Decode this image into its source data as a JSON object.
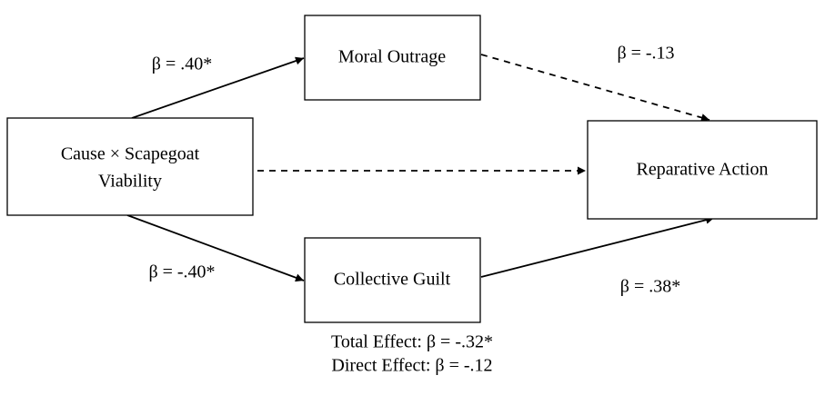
{
  "nodes": [
    {
      "label": [
        "Cause × Scapegoat",
        "Viability"
      ]
    },
    {
      "label": [
        "Moral Outrage"
      ]
    },
    {
      "label": [
        "Collective Guilt"
      ]
    },
    {
      "label": [
        "Reparative Action"
      ]
    }
  ],
  "edges": [
    {
      "label": "β = .40*"
    },
    {
      "label": "β = -.40*"
    },
    {
      "label": "β = -.13"
    },
    {
      "label": "β = .38*"
    }
  ],
  "notes": [
    "Total Effect: β = -.32*",
    "Direct Effect: β = -.12"
  ]
}
